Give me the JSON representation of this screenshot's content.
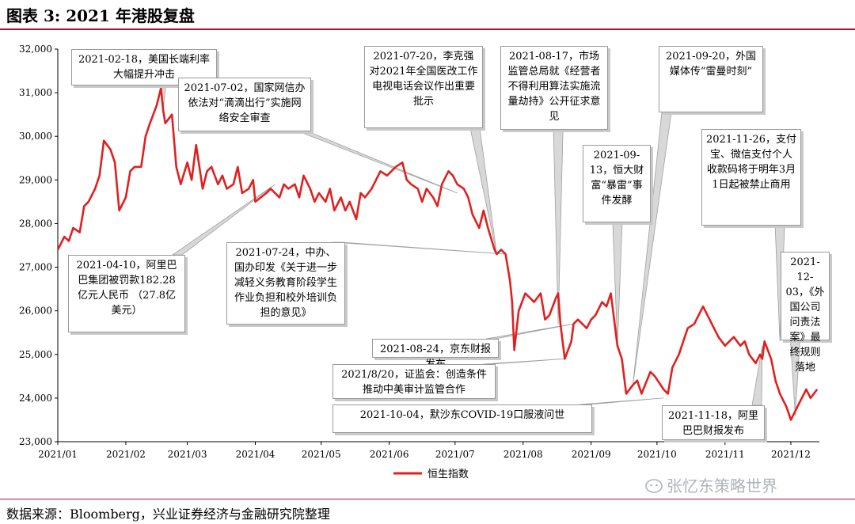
{
  "title": "图表 3:  2021 年港股复盘",
  "source": "数据来源：Bloomberg，兴业证券经济与金融研究院整理",
  "watermark": "张忆东策略世界",
  "colors": {
    "line": "#e02020",
    "accent": "#b0102a",
    "annotation_border": "#9a9a9a",
    "pointer": "#a0a0a0"
  },
  "chart_data": {
    "type": "line",
    "title": "",
    "xlabel": "",
    "ylabel": "",
    "ylim": [
      23000,
      32000
    ],
    "yticks": [
      23000,
      24000,
      25000,
      26000,
      27000,
      28000,
      29000,
      30000,
      31000,
      32000
    ],
    "ytick_labels": [
      "23,000",
      "24,000",
      "25,000",
      "26,000",
      "27,000",
      "28,000",
      "29,000",
      "30,000",
      "31,000",
      "32,000"
    ],
    "xlim": [
      "2021-01-01",
      "2021-12-14"
    ],
    "xticks": [
      "2021-01-01",
      "2021-02-01",
      "2021-03-01",
      "2021-04-01",
      "2021-05-01",
      "2021-06-01",
      "2021-07-01",
      "2021-08-01",
      "2021-09-01",
      "2021-10-01",
      "2021-11-01",
      "2021-12-01"
    ],
    "xtick_labels": [
      "2021/01",
      "2021/02",
      "2021/03",
      "2021/04",
      "2021/05",
      "2021/06",
      "2021/07",
      "2021/08",
      "2021/09",
      "2021/10",
      "2021/11",
      "2021/12"
    ],
    "grid": false,
    "legend": "bottom-center",
    "series": [
      {
        "name": "恒生指数",
        "color": "#e02020",
        "x": [
          "2021-01-01",
          "2021-01-04",
          "2021-01-06",
          "2021-01-08",
          "2021-01-11",
          "2021-01-13",
          "2021-01-15",
          "2021-01-18",
          "2021-01-20",
          "2021-01-22",
          "2021-01-25",
          "2021-01-27",
          "2021-01-29",
          "2021-02-01",
          "2021-02-03",
          "2021-02-05",
          "2021-02-08",
          "2021-02-10",
          "2021-02-12",
          "2021-02-15",
          "2021-02-17",
          "2021-02-18",
          "2021-02-19",
          "2021-02-22",
          "2021-02-24",
          "2021-02-26",
          "2021-03-01",
          "2021-03-03",
          "2021-03-05",
          "2021-03-08",
          "2021-03-10",
          "2021-03-12",
          "2021-03-15",
          "2021-03-17",
          "2021-03-19",
          "2021-03-22",
          "2021-03-24",
          "2021-03-26",
          "2021-03-29",
          "2021-03-31",
          "2021-04-01",
          "2021-04-06",
          "2021-04-08",
          "2021-04-12",
          "2021-04-14",
          "2021-04-16",
          "2021-04-19",
          "2021-04-21",
          "2021-04-23",
          "2021-04-26",
          "2021-04-28",
          "2021-04-30",
          "2021-05-03",
          "2021-05-05",
          "2021-05-07",
          "2021-05-10",
          "2021-05-12",
          "2021-05-14",
          "2021-05-17",
          "2021-05-19",
          "2021-05-21",
          "2021-05-24",
          "2021-05-26",
          "2021-05-28",
          "2021-05-31",
          "2021-06-02",
          "2021-06-04",
          "2021-06-07",
          "2021-06-09",
          "2021-06-11",
          "2021-06-14",
          "2021-06-16",
          "2021-06-18",
          "2021-06-21",
          "2021-06-23",
          "2021-06-25",
          "2021-06-28",
          "2021-06-30",
          "2021-07-02",
          "2021-07-05",
          "2021-07-07",
          "2021-07-09",
          "2021-07-12",
          "2021-07-14",
          "2021-07-16",
          "2021-07-19",
          "2021-07-20",
          "2021-07-22",
          "2021-07-24",
          "2021-07-26",
          "2021-07-27",
          "2021-07-28",
          "2021-07-30",
          "2021-08-02",
          "2021-08-04",
          "2021-08-06",
          "2021-08-09",
          "2021-08-11",
          "2021-08-13",
          "2021-08-16",
          "2021-08-17",
          "2021-08-18",
          "2021-08-20",
          "2021-08-23",
          "2021-08-24",
          "2021-08-26",
          "2021-08-30",
          "2021-09-01",
          "2021-09-03",
          "2021-09-06",
          "2021-09-08",
          "2021-09-10",
          "2021-09-13",
          "2021-09-15",
          "2021-09-17",
          "2021-09-20",
          "2021-09-22",
          "2021-09-24",
          "2021-09-28",
          "2021-09-30",
          "2021-10-04",
          "2021-10-06",
          "2021-10-08",
          "2021-10-11",
          "2021-10-13",
          "2021-10-15",
          "2021-10-18",
          "2021-10-20",
          "2021-10-22",
          "2021-10-25",
          "2021-10-27",
          "2021-10-29",
          "2021-11-01",
          "2021-11-03",
          "2021-11-05",
          "2021-11-08",
          "2021-11-10",
          "2021-11-12",
          "2021-11-15",
          "2021-11-17",
          "2021-11-18",
          "2021-11-19",
          "2021-11-22",
          "2021-11-24",
          "2021-11-26",
          "2021-11-29",
          "2021-12-01",
          "2021-12-03",
          "2021-12-06",
          "2021-12-08",
          "2021-12-10",
          "2021-12-13"
        ],
        "values": [
          27400,
          27700,
          27600,
          27900,
          27800,
          28400,
          28500,
          28800,
          29100,
          29900,
          29700,
          29400,
          28300,
          28600,
          29200,
          29300,
          29300,
          30000,
          30300,
          30700,
          31100,
          30600,
          30300,
          30500,
          29300,
          28900,
          29400,
          29000,
          29800,
          28800,
          29200,
          29300,
          28900,
          29100,
          28800,
          28900,
          29300,
          28700,
          28800,
          29000,
          28500,
          28700,
          28800,
          28600,
          28900,
          28800,
          28900,
          28600,
          29100,
          28800,
          28500,
          28700,
          28500,
          28800,
          28300,
          28600,
          28300,
          28500,
          28100,
          28700,
          28600,
          28800,
          29000,
          29200,
          29100,
          29200,
          29300,
          29400,
          29000,
          28900,
          28800,
          28500,
          28800,
          28600,
          28400,
          28900,
          29200,
          29100,
          28900,
          28800,
          28600,
          28200,
          27900,
          28300,
          27900,
          27400,
          27300,
          27400,
          27300,
          26700,
          26200,
          25100,
          26000,
          26400,
          26300,
          26200,
          26400,
          25800,
          25900,
          26300,
          26400,
          25700,
          24900,
          25300,
          25700,
          25800,
          25600,
          25800,
          25900,
          26200,
          26100,
          26400,
          25200,
          24900,
          24100,
          24300,
          24400,
          24100,
          24600,
          24500,
          24200,
          24100,
          24700,
          25000,
          25300,
          25600,
          25700,
          25900,
          26100,
          25800,
          25600,
          25400,
          25200,
          25300,
          25400,
          25200,
          25300,
          25000,
          24800,
          25000,
          24900,
          25300,
          24900,
          24400,
          24100,
          23800,
          23500,
          23700,
          24000,
          24200,
          24000,
          24200
        ]
      }
    ],
    "annotations": [
      {
        "text": "2021-02-18，美国长端利率大幅提升冲击",
        "date": "2021-02-18",
        "value": 30600
      },
      {
        "text": "2021-07-02，国家网信办依法对“滴滴出行”实施网络安全审查",
        "date": "2021-07-02",
        "value": 28700
      },
      {
        "text": "2021-04-10，阿里巴巴集团被罚款182.28亿元人民币 （27.8亿美元）",
        "date": "2021-04-10",
        "value": 28900
      },
      {
        "text": "2021-07-24，中办、国办印发《关于进一步减轻义务教育阶段学生作业负担和校外培训负担的意见》",
        "date": "2021-07-24",
        "value": 27300
      },
      {
        "text": "2021-07-20，李克强对2021年全国医改工作电视电话会议作出重要批示",
        "date": "2021-07-20",
        "value": 27300
      },
      {
        "text": "2021-08-17，市场监管总局就《经营者不得利用算法实施流量劫持》公开征求意见",
        "date": "2021-08-17",
        "value": 25700
      },
      {
        "text": "2021-09-13，恒大财富“暴雷”事件发酵",
        "date": "2021-09-13",
        "value": 25200
      },
      {
        "text": "2021-09-20，外国媒体传“雷曼时刻”",
        "date": "2021-09-20",
        "value": 24300
      },
      {
        "text": "2021-11-26，支付宝、微信支付个人收款码将于明年3月1日起被禁止商用",
        "date": "2021-11-26",
        "value": 25300
      },
      {
        "text": "2021-12-03，《外国公司问责法案》最终规则落地",
        "date": "2021-12-03",
        "value": 23600
      },
      {
        "text": "2021-08-24，京东财报发布",
        "date": "2021-08-24",
        "value": 25700
      },
      {
        "text": "2021/8/20，证监会：创造条件推动中美审计监管合作",
        "date": "2021-08-20",
        "value": 24900
      },
      {
        "text": "2021-10-04，默沙东COVID-19口服液问世",
        "date": "2021-10-04",
        "value": 24000
      },
      {
        "text": "2021-11-18，阿里巴巴财报发布",
        "date": "2021-11-18",
        "value": 25200
      }
    ]
  }
}
